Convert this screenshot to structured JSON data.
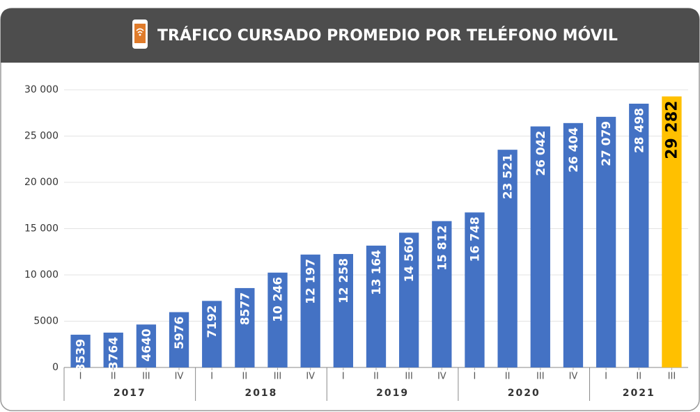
{
  "chart_data": {
    "type": "bar",
    "title": "TRÁFICO CURSADO PROMEDIO POR TELÉFONO MÓVIL",
    "categories": [
      "I",
      "II",
      "III",
      "IV",
      "I",
      "II",
      "III",
      "IV",
      "I",
      "II",
      "III",
      "IV",
      "I",
      "II",
      "III",
      "IV",
      "I",
      "II",
      "III"
    ],
    "years": [
      "2017",
      "2018",
      "2019",
      "2020",
      "2021"
    ],
    "values": [
      3539,
      3764,
      4640,
      5976,
      7192,
      8577,
      10246,
      12197,
      12258,
      13164,
      14560,
      15812,
      16748,
      23521,
      26042,
      26404,
      27079,
      28498,
      29282
    ],
    "value_labels": [
      "3539",
      "3764",
      "4640",
      "5976",
      "7192",
      "8577",
      "10 246",
      "12 197",
      "12 258",
      "13 164",
      "14 560",
      "15 812",
      "16 748",
      "23 521",
      "26 042",
      "26 404",
      "27 079",
      "28 498",
      "29 282"
    ],
    "colors": [
      "#4472c4",
      "#4472c4",
      "#4472c4",
      "#4472c4",
      "#4472c4",
      "#4472c4",
      "#4472c4",
      "#4472c4",
      "#4472c4",
      "#4472c4",
      "#4472c4",
      "#4472c4",
      "#4472c4",
      "#4472c4",
      "#4472c4",
      "#4472c4",
      "#4472c4",
      "#4472c4",
      "#ffc000"
    ],
    "ylim": [
      0,
      30000
    ],
    "yticks": [
      0,
      5000,
      {
        "value": 10000,
        "label": "10 000"
      },
      {
        "value": 15000,
        "label": "15 000"
      },
      {
        "value": 20000,
        "label": "20 000"
      },
      {
        "value": 25000,
        "label": "25 000"
      },
      {
        "value": 30000,
        "label": "30 000"
      }
    ],
    "grid": true
  }
}
